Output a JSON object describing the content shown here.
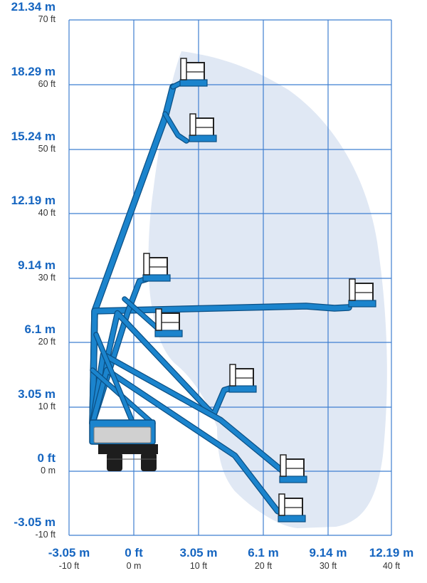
{
  "colors": {
    "accent_label": "#1565c0",
    "sub_label": "#333333",
    "grid": "#3f7fd0",
    "envelope": "#e0e8f4",
    "boom": "#1b84cd",
    "boom_edge": "#0b4f84",
    "platform_fill": "#ffffff",
    "platform_stroke": "#222222",
    "chassis": "#1d1d1d",
    "counterweight": "#d0d0d0"
  },
  "y_axis": {
    "ticks": [
      {
        "metric": "21.34 m",
        "imperial": "70 ft"
      },
      {
        "metric": "18.29 m",
        "imperial": "60 ft"
      },
      {
        "metric": "15.24 m",
        "imperial": "50 ft"
      },
      {
        "metric": "12.19 m",
        "imperial": "40 ft"
      },
      {
        "metric": "9.14 m",
        "imperial": "30 ft"
      },
      {
        "metric": "6.1 m",
        "imperial": "20 ft"
      },
      {
        "metric": "3.05 m",
        "imperial": "10 ft"
      },
      {
        "metric": "0 ft",
        "imperial": "0 m"
      },
      {
        "metric": "-3.05 m",
        "imperial": "-10 ft"
      }
    ]
  },
  "x_axis": {
    "ticks": [
      {
        "metric": "-3.05 m",
        "imperial": "-10 ft"
      },
      {
        "metric": "0 ft",
        "imperial": "0 m"
      },
      {
        "metric": "3.05 m",
        "imperial": "10 ft"
      },
      {
        "metric": "6.1 m",
        "imperial": "20 ft"
      },
      {
        "metric": "9.14 m",
        "imperial": "30 ft"
      },
      {
        "metric": "12.19 m",
        "imperial": "40 ft"
      }
    ]
  },
  "machine": {
    "brand_icon": "genie-logo-icon"
  }
}
